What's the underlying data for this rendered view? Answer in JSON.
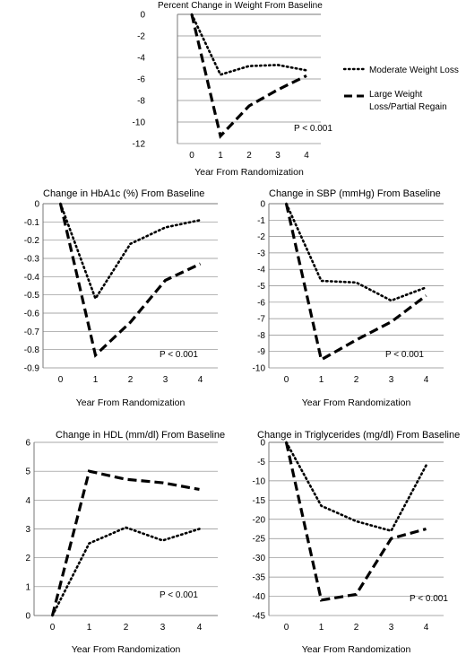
{
  "legend": {
    "moderate": "Moderate Weight Loss",
    "large_line1": "Large Weight",
    "large_line2": "Loss/Partial Regain"
  },
  "chart_data": [
    {
      "type": "line",
      "title": "Percent Change in Weight  From Baseline",
      "xlabel": "Year From Randomization",
      "ylabel": "",
      "x": [
        0,
        1,
        2,
        3,
        4
      ],
      "ylim": [
        -12,
        0
      ],
      "yticks": [
        0,
        -2,
        -4,
        -6,
        -8,
        -10,
        -12
      ],
      "series": [
        {
          "name": "Moderate Weight Loss",
          "style": "dotted",
          "values": [
            0,
            -5.6,
            -4.8,
            -4.7,
            -5.2
          ]
        },
        {
          "name": "Large Weight Loss/Partial Regain",
          "style": "dashed",
          "values": [
            0,
            -11.3,
            -8.5,
            -7.0,
            -5.7
          ]
        }
      ],
      "annotation": "P < 0.001",
      "grid": true,
      "legend_position": "right"
    },
    {
      "type": "line",
      "title": "Change in HbA1c (%) From Baseline",
      "xlabel": "Year From Randomization",
      "ylabel": "",
      "x": [
        0,
        1,
        2,
        3,
        4
      ],
      "ylim": [
        -0.9,
        0
      ],
      "yticks": [
        0,
        -0.1,
        -0.2,
        -0.3,
        -0.4,
        -0.5,
        -0.6,
        -0.7,
        -0.8,
        -0.9
      ],
      "series": [
        {
          "name": "Moderate Weight Loss",
          "style": "dotted",
          "values": [
            0,
            -0.52,
            -0.22,
            -0.13,
            -0.09
          ]
        },
        {
          "name": "Large Weight Loss/Partial Regain",
          "style": "dashed",
          "values": [
            0,
            -0.83,
            -0.65,
            -0.42,
            -0.33
          ]
        }
      ],
      "annotation": "P < 0.001",
      "grid": true
    },
    {
      "type": "line",
      "title": "Change in SBP (mmHg) From Baseline",
      "xlabel": "Year From Randomization",
      "ylabel": "",
      "x": [
        0,
        1,
        2,
        3,
        4
      ],
      "ylim": [
        -10,
        0
      ],
      "yticks": [
        0,
        -1,
        -2,
        -3,
        -4,
        -5,
        -6,
        -7,
        -8,
        -9,
        -10
      ],
      "series": [
        {
          "name": "Moderate Weight Loss",
          "style": "dotted",
          "values": [
            0,
            -4.7,
            -4.8,
            -5.9,
            -5.1
          ]
        },
        {
          "name": "Large Weight Loss/Partial Regain",
          "style": "dashed",
          "values": [
            0,
            -9.5,
            -8.3,
            -7.2,
            -5.6
          ]
        }
      ],
      "annotation": "P < 0.001",
      "grid": true
    },
    {
      "type": "line",
      "title": "Change in HDL (mm/dl) From Baseline",
      "xlabel": "Year From Randomization",
      "ylabel": "",
      "x": [
        0,
        1,
        2,
        3,
        4
      ],
      "ylim": [
        0,
        6
      ],
      "yticks": [
        6,
        5,
        4,
        3,
        2,
        1,
        0
      ],
      "series": [
        {
          "name": "Moderate Weight Loss",
          "style": "dotted",
          "values": [
            0,
            2.5,
            3.05,
            2.6,
            3.0
          ]
        },
        {
          "name": "Large Weight Loss/Partial Regain",
          "style": "dashed",
          "values": [
            0,
            5.0,
            4.72,
            4.6,
            4.37
          ]
        }
      ],
      "annotation": "P < 0.001",
      "grid": true
    },
    {
      "type": "line",
      "title": "Change in Triglycerides (mg/dl) From Baseline",
      "xlabel": "Year From Randomization",
      "ylabel": "",
      "x": [
        0,
        1,
        2,
        3,
        4
      ],
      "ylim": [
        -45,
        0
      ],
      "yticks": [
        0,
        -5,
        -10,
        -15,
        -20,
        -25,
        -30,
        -35,
        -40,
        -45
      ],
      "series": [
        {
          "name": "Moderate Weight Loss",
          "style": "dotted",
          "values": [
            0,
            -16.5,
            -20.5,
            -23,
            -6
          ]
        },
        {
          "name": "Large Weight Loss/Partial Regain",
          "style": "dashed",
          "values": [
            0,
            -41,
            -39.5,
            -25,
            -22.5
          ]
        }
      ],
      "annotation": "P < 0.001",
      "grid": true
    }
  ]
}
